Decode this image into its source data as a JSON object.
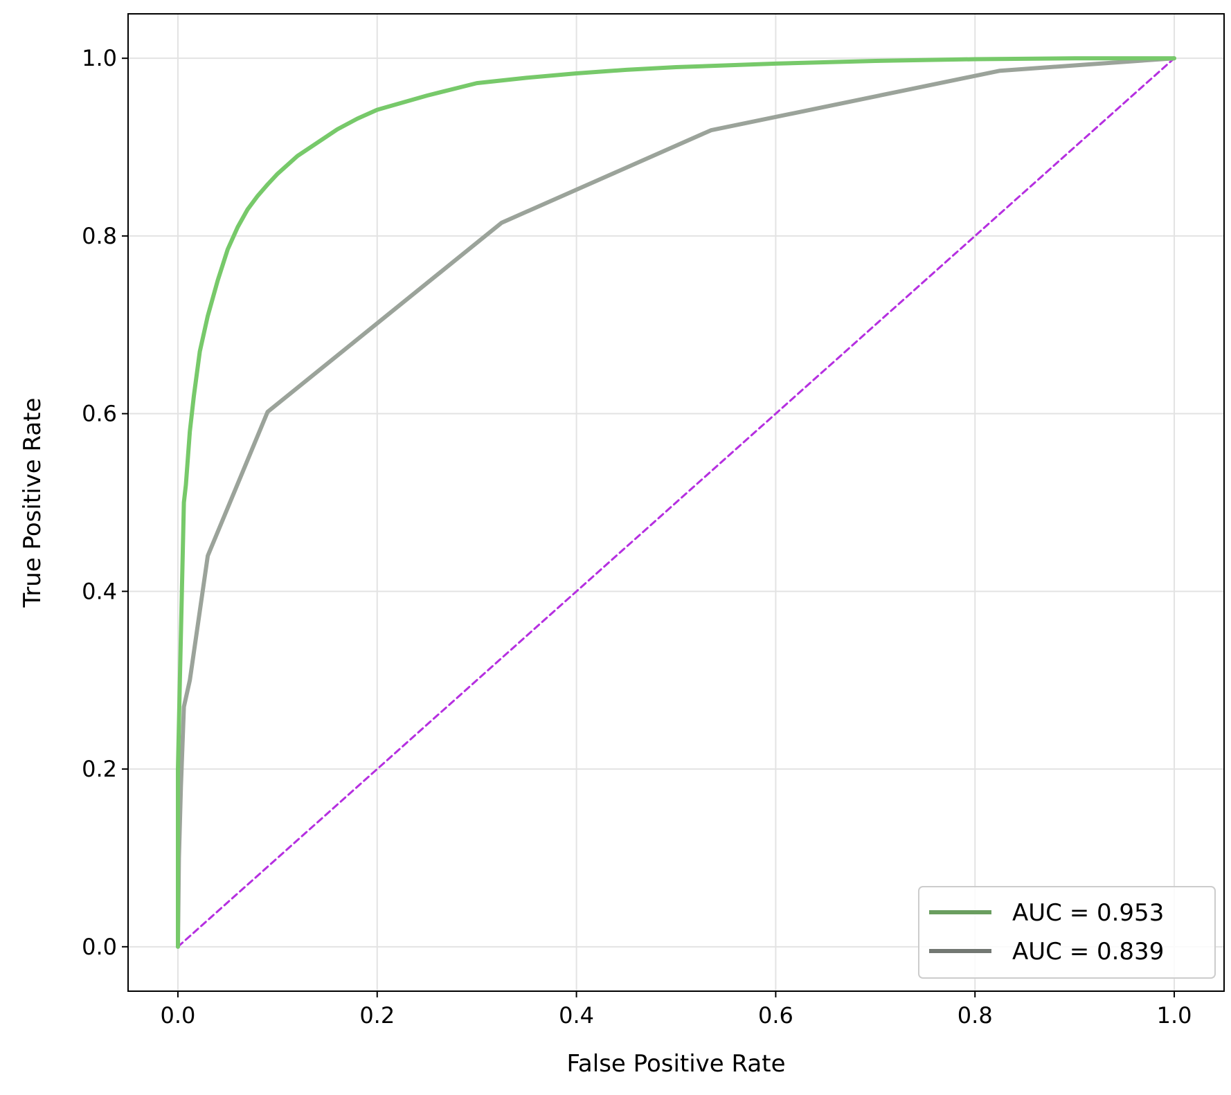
{
  "chart_data": {
    "type": "line",
    "title": "",
    "xlabel": "False Positive Rate",
    "ylabel": "True Positive Rate",
    "xlim": [
      -0.05,
      1.05
    ],
    "ylim": [
      -0.05,
      1.05
    ],
    "x_ticks": [
      "0.0",
      "0.2",
      "0.4",
      "0.6",
      "0.8",
      "1.0"
    ],
    "y_ticks": [
      "0.0",
      "0.2",
      "0.4",
      "0.6",
      "0.8",
      "1.0"
    ],
    "grid": true,
    "legend_position": "lower-right",
    "legend_entries": [
      "AUC = 0.953",
      "AUC = 0.839"
    ],
    "series": [
      {
        "name": "AUC = 0.953",
        "color": "#77c96a",
        "legend_color": "#6a9e5f",
        "x": [
          0.0,
          0.0,
          0.002,
          0.004,
          0.006,
          0.008,
          0.012,
          0.016,
          0.022,
          0.03,
          0.04,
          0.05,
          0.06,
          0.07,
          0.08,
          0.09,
          0.1,
          0.12,
          0.14,
          0.16,
          0.18,
          0.2,
          0.25,
          0.3,
          0.35,
          0.4,
          0.45,
          0.5,
          0.6,
          0.7,
          0.8,
          0.9,
          1.0
        ],
        "y": [
          0.0,
          0.2,
          0.3,
          0.4,
          0.5,
          0.52,
          0.58,
          0.62,
          0.67,
          0.71,
          0.75,
          0.785,
          0.81,
          0.83,
          0.845,
          0.858,
          0.87,
          0.89,
          0.905,
          0.92,
          0.932,
          0.942,
          0.958,
          0.972,
          0.978,
          0.983,
          0.987,
          0.99,
          0.994,
          0.997,
          0.999,
          1.0,
          1.0
        ]
      },
      {
        "name": "AUC = 0.839",
        "color": "#9ba39a",
        "legend_color": "#737873",
        "x": [
          0.0,
          0.001,
          0.003,
          0.006,
          0.012,
          0.03,
          0.09,
          0.325,
          0.535,
          0.825,
          1.0
        ],
        "y": [
          0.0,
          0.1,
          0.18,
          0.27,
          0.3,
          0.44,
          0.602,
          0.815,
          0.919,
          0.986,
          1.0
        ]
      },
      {
        "name": "",
        "color": "#b52fe0",
        "dashed": true,
        "x": [
          0.0,
          1.0
        ],
        "y": [
          0.0,
          1.0
        ]
      }
    ]
  }
}
